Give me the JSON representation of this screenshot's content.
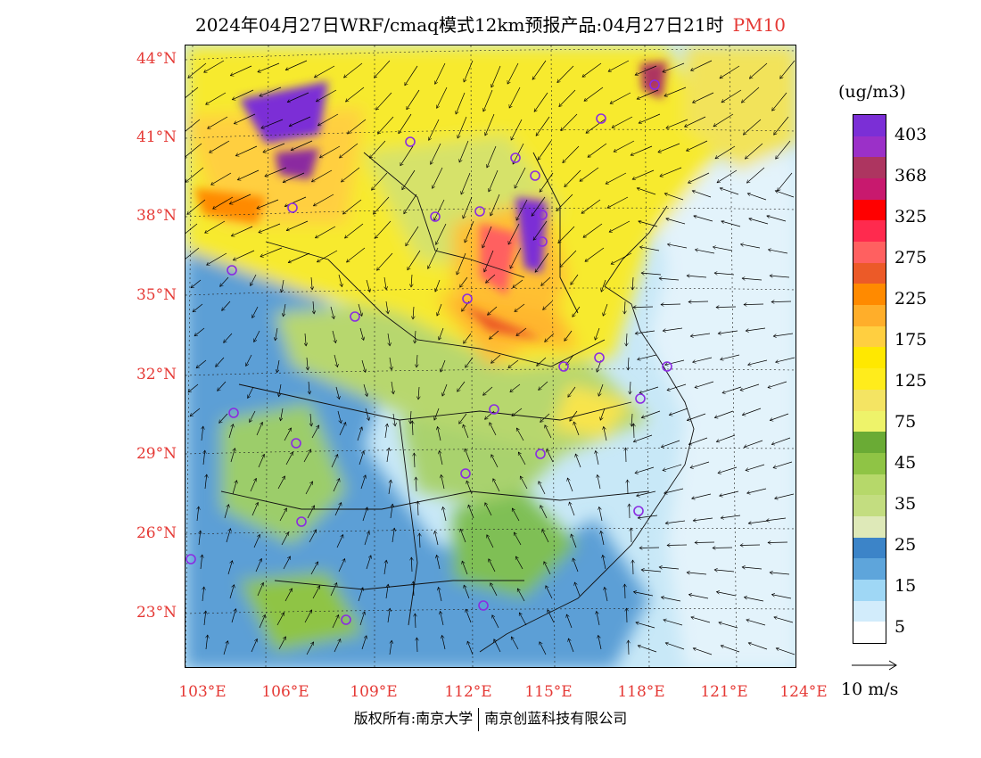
{
  "title": {
    "main": "2024年04月27日WRF/cmaq模式12km预报产品:04月27日21时",
    "pollutant": "PM10"
  },
  "lat_labels": [
    "44°N",
    "41°N",
    "38°N",
    "35°N",
    "32°N",
    "29°N",
    "26°N",
    "23°N"
  ],
  "lon_labels": [
    "103°E",
    "106°E",
    "109°E",
    "112°E",
    "115°E",
    "118°E",
    "121°E",
    "124°E"
  ],
  "colorbar": {
    "unit": "(ug/m3)",
    "labels": [
      "403",
      "368",
      "325",
      "275",
      "225",
      "175",
      "125",
      "75",
      "45",
      "35",
      "25",
      "15",
      "5"
    ],
    "colors": [
      "#7b2fd6",
      "#9b30c8",
      "#ad3560",
      "#c8196e",
      "#ff0000",
      "#ff2a4e",
      "#ff6060",
      "#ec5a28",
      "#ff8a00",
      "#ffae2a",
      "#ffcf40",
      "#ffe800",
      "#ffec1c",
      "#f4e463",
      "#eef36a",
      "#6aab35",
      "#8fc445",
      "#b6d86a",
      "#c3dd80",
      "#dee9b8",
      "#3c84c8",
      "#5ea5db",
      "#9fd7f5",
      "#d2ecfb",
      "#ffffff"
    ]
  },
  "wind_reference": {
    "label": "10 m/s"
  },
  "copyright": {
    "left": "版权所有:南京大学",
    "right": "南京创蓝科技有限公司"
  }
}
